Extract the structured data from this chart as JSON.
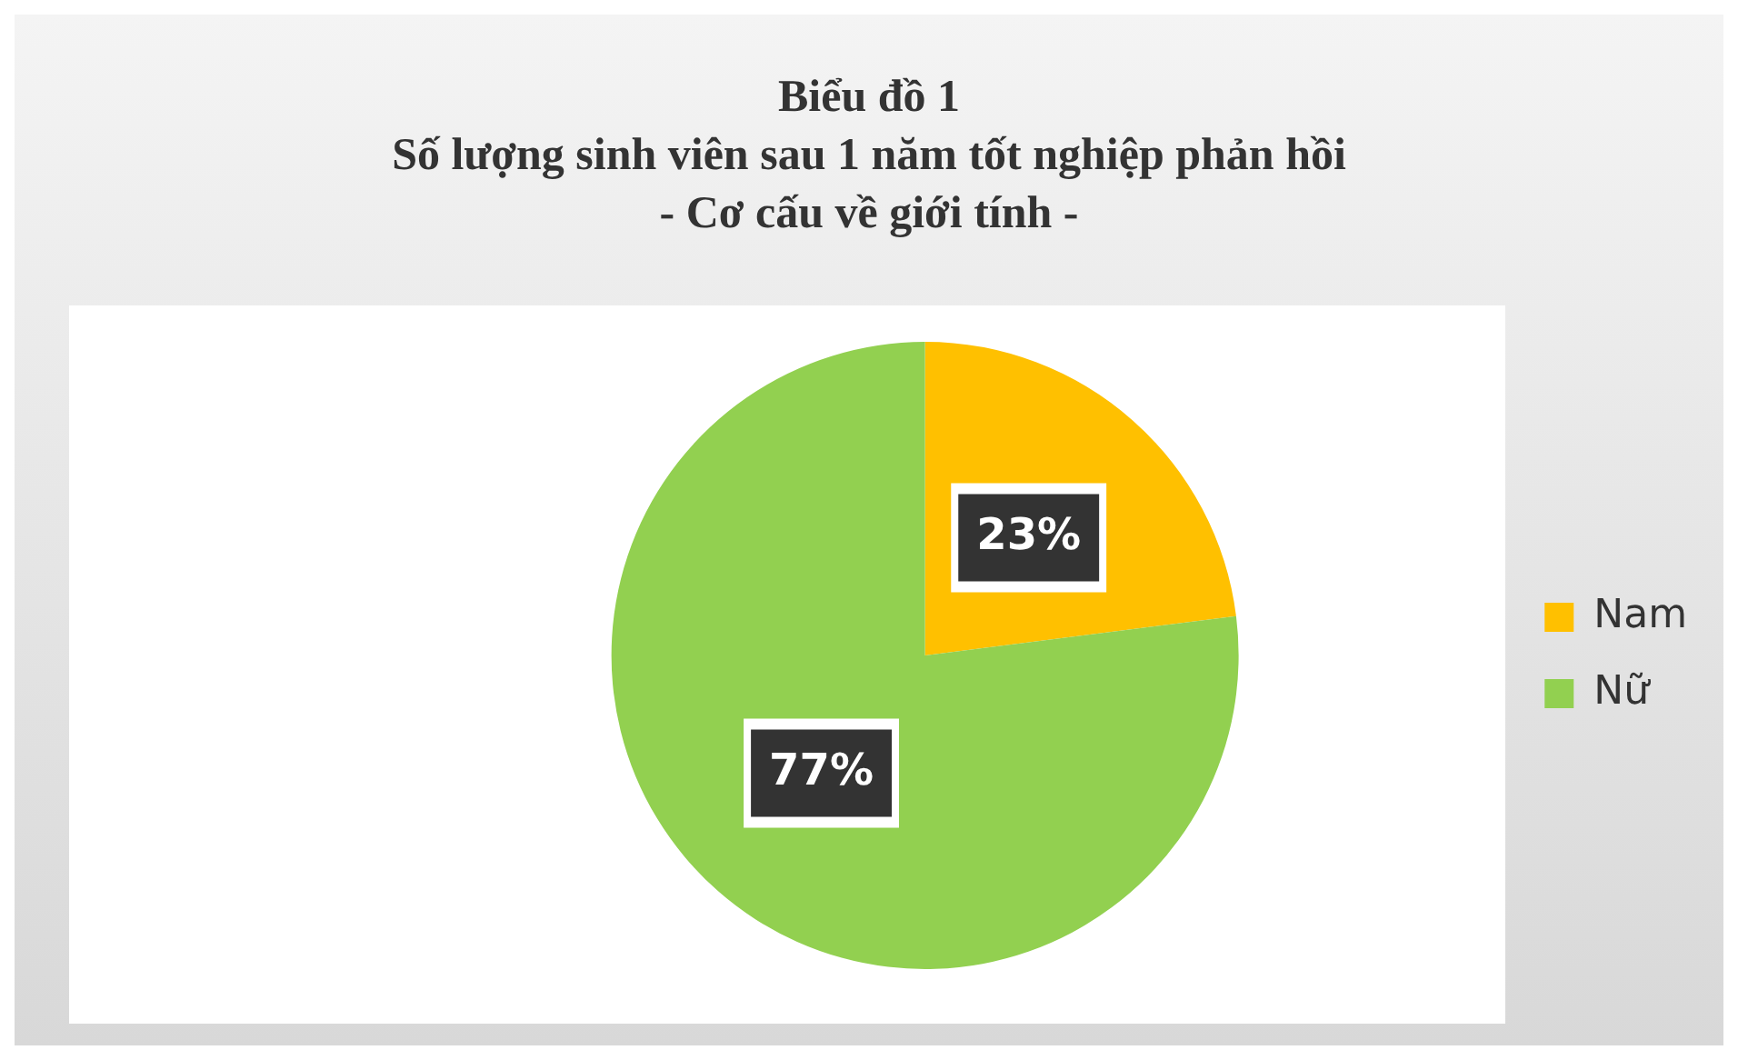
{
  "chart_data": {
    "type": "pie",
    "title": "Biểu đồ 1\nSố lượng sinh viên sau 1 năm tốt nghiệp phản hồi\n- Cơ cấu về giới tính -",
    "categories": [
      "Nam",
      "Nữ"
    ],
    "values": [
      23,
      77
    ],
    "colors": [
      "#ffc000",
      "#92d050"
    ],
    "value_labels": [
      "23%",
      "77%"
    ],
    "legend": "right"
  }
}
